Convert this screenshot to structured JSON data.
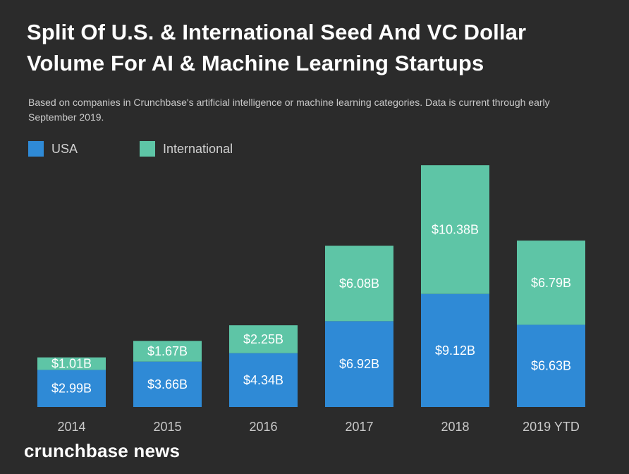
{
  "title": "Split Of U.S. & International Seed And VC Dollar Volume For AI & Machine Learning Startups",
  "subtitle": "Based on companies in Crunchbase's artificial intelligence or machine learning categories. Data is current through early September 2019.",
  "brand": "crunchbase news",
  "colors": {
    "background": "#2b2b2b",
    "usa": "#2f8ad6",
    "international": "#5ec5a6"
  },
  "chart_data": {
    "type": "bar",
    "stacked": true,
    "categories": [
      "2014",
      "2015",
      "2016",
      "2017",
      "2018",
      "2019 YTD"
    ],
    "series": [
      {
        "name": "USA",
        "values": [
          2.99,
          3.66,
          4.34,
          6.92,
          9.12,
          6.63
        ],
        "labels": [
          "$2.99B",
          "$3.66B",
          "$4.34B",
          "$6.92B",
          "$9.12B",
          "$6.63B"
        ]
      },
      {
        "name": "International",
        "values": [
          1.01,
          1.67,
          2.25,
          6.08,
          10.38,
          6.79
        ],
        "labels": [
          "$1.01B",
          "$1.67B",
          "$2.25B",
          "$6.08B",
          "$10.38B",
          "$6.79B"
        ]
      }
    ],
    "ylim": [
      0,
      19.5
    ],
    "grid": false,
    "legend": "top-left"
  }
}
